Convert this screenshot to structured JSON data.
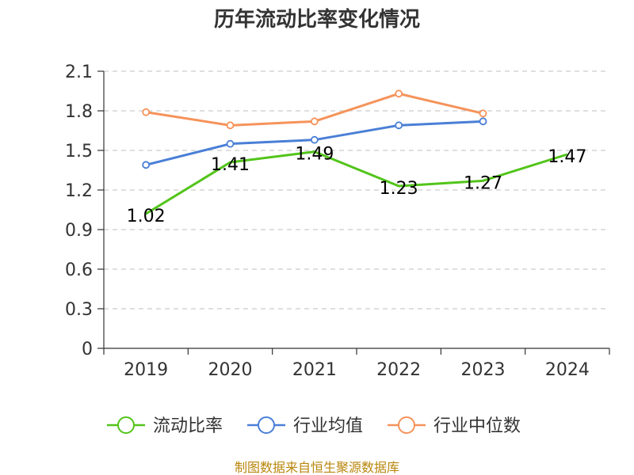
{
  "chart_data": {
    "type": "line",
    "title": "历年流动比率变化情况",
    "categories": [
      "2019",
      "2020",
      "2021",
      "2022",
      "2023",
      "2024"
    ],
    "ylim": [
      0,
      2.1
    ],
    "yticks": [
      "0",
      "0.3",
      "0.6",
      "0.9",
      "1.2",
      "1.5",
      "1.8",
      "2.1"
    ],
    "grid": true,
    "legend_position": "bottom",
    "series": [
      {
        "name": "流动比率",
        "color": "#52c41a",
        "values": [
          1.02,
          1.41,
          1.49,
          1.23,
          1.27,
          1.47
        ],
        "labels": [
          "1.02",
          "1.41",
          "1.49",
          "1.23",
          "1.27",
          "1.47"
        ]
      },
      {
        "name": "行业均值",
        "color": "#4a7fd6",
        "values": [
          1.39,
          1.55,
          1.58,
          1.69,
          1.72,
          null
        ]
      },
      {
        "name": "行业中位数",
        "color": "#f5935a",
        "values": [
          1.79,
          1.69,
          1.72,
          1.93,
          1.78,
          null
        ]
      }
    ],
    "source": "制图数据来自恒生聚源数据库"
  }
}
